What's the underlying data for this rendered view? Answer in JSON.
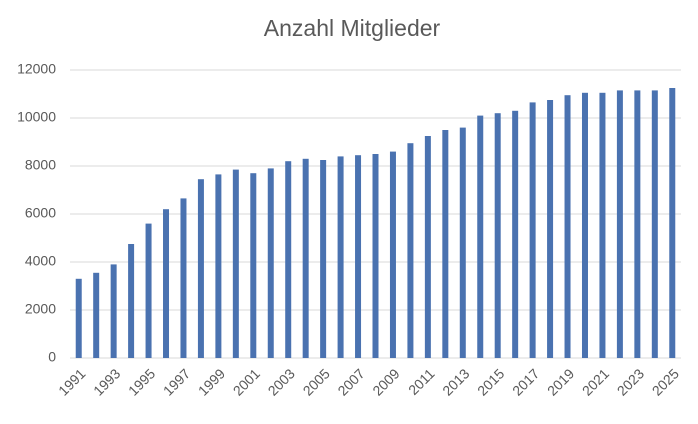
{
  "chart_data": {
    "type": "bar",
    "title": "Anzahl Mitglieder",
    "categories": [
      "1991",
      null,
      "1993",
      null,
      "1995",
      null,
      "1997",
      null,
      "1999",
      null,
      "2001",
      null,
      "2003",
      null,
      "2005",
      null,
      "2007",
      null,
      "2009",
      null,
      "2011",
      null,
      "2013",
      null,
      "2015",
      null,
      "2017",
      null,
      "2019",
      null,
      "2021",
      null,
      "2023",
      null,
      "2025"
    ],
    "values": [
      3300,
      3550,
      3900,
      4750,
      5600,
      6200,
      6650,
      7450,
      7650,
      7850,
      7700,
      7900,
      8200,
      8300,
      8250,
      8400,
      8450,
      8500,
      8600,
      8950,
      9250,
      9500,
      9600,
      10100,
      10200,
      10300,
      10650,
      10750,
      10950,
      11050,
      11050,
      11150,
      11150,
      11150,
      11250
    ],
    "color": "#4a72b0",
    "ylim": [
      0,
      12000
    ],
    "yticks": [
      0,
      2000,
      4000,
      6000,
      8000,
      10000,
      12000
    ],
    "grid": true
  }
}
